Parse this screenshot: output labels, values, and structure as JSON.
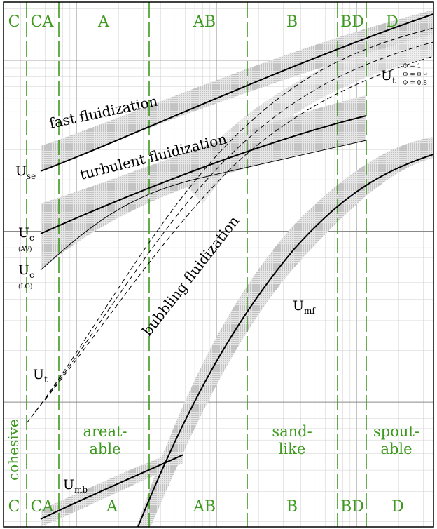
{
  "colors": {
    "green": "#3d9a1f",
    "black": "#000000",
    "band": "#bdbdbd",
    "grid": "#c8c8c8",
    "frame": "#000000"
  },
  "regions_top": [
    "C",
    "CA",
    "A",
    "AB",
    "B",
    "BD",
    "D"
  ],
  "regions_bottom": [
    "C",
    "CA",
    "A",
    "AB",
    "B",
    "BD",
    "D"
  ],
  "regime_labels": {
    "fast": "fast fluidization",
    "turbulent": "turbulent fluidization",
    "bubbling": "bubbling fluidization"
  },
  "velocity_labels": {
    "use_main": "U",
    "use_sub": "se",
    "uc_av_main": "U",
    "uc_av_sub": "c",
    "uc_av_note": "(AV)",
    "uc_lo_main": "U",
    "uc_lo_sub": "c",
    "uc_lo_note": "(LO)",
    "ut_left_main": "U",
    "ut_left_sub": "t",
    "ut_right_main": "U",
    "ut_right_sub": "t",
    "umf_main": "U",
    "umf_sub": "mf",
    "umb_main": "U",
    "umb_sub": "mb"
  },
  "sphericity": [
    "Φ = 1",
    "Φ = 0.9",
    "Φ = 0.8"
  ],
  "behavior_labels": {
    "cohesive": "cohesive",
    "aerat_1": "areat-",
    "aerat_2": "able",
    "sand_1": "sand-",
    "sand_2": "like",
    "spout_1": "spout-",
    "spout_2": "able"
  }
}
